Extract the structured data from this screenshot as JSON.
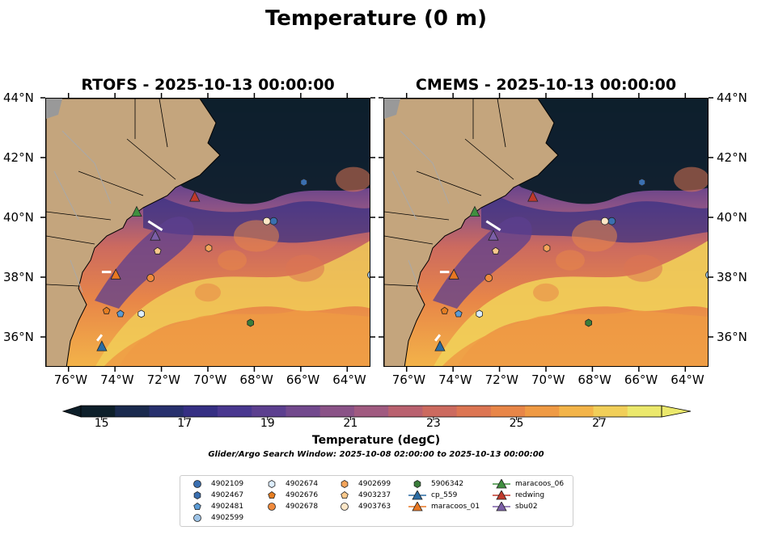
{
  "figure": {
    "title": "Temperature (0 m)",
    "search_window": "Glider/Argo Search Window: 2025-10-08 02:00:00 to 2025-10-13 00:00:00"
  },
  "panels": [
    {
      "title": "RTOFS - 2025-10-13 00:00:00"
    },
    {
      "title": "CMEMS - 2025-10-13 00:00:00"
    }
  ],
  "axes": {
    "lon_ticks": [
      "76°W",
      "74°W",
      "72°W",
      "70°W",
      "68°W",
      "66°W",
      "64°W"
    ],
    "lat_ticks": [
      "44°N",
      "42°N",
      "40°N",
      "38°N",
      "36°N"
    ],
    "lon_range": [
      -77.0,
      -63.0
    ],
    "lat_range": [
      35.0,
      44.0
    ]
  },
  "colorbar": {
    "label": "Temperature (degC)",
    "ticks": [
      "15",
      "17",
      "19",
      "21",
      "23",
      "25",
      "27"
    ],
    "range": [
      14.5,
      28.5
    ],
    "extend": "both",
    "colors": [
      "#0d1f2a",
      "#1a2a4e",
      "#27306d",
      "#352f83",
      "#49378f",
      "#5c3f8f",
      "#72498d",
      "#8a5287",
      "#a05a80",
      "#b9616f",
      "#cc6a5f",
      "#dc7552",
      "#e88648",
      "#ef9a44",
      "#f3b449",
      "#f1cf59",
      "#ebe86c"
    ]
  },
  "markers": {
    "argo": [
      {
        "id": "4902109",
        "lon": -67.2,
        "lat": 39.9,
        "shape": "circle",
        "color": "#3a6fb0"
      },
      {
        "id": "4902467",
        "lon": -65.9,
        "lat": 41.2,
        "shape": "hexagon",
        "color": "#3a6fb0"
      },
      {
        "id": "4902481",
        "lon": -73.8,
        "lat": 36.8,
        "shape": "pentagon",
        "color": "#5b9bd5"
      },
      {
        "id": "4902599",
        "lon": -63.0,
        "lat": 38.1,
        "shape": "circle",
        "color": "#9dc3e6"
      },
      {
        "id": "4902674",
        "lon": -72.9,
        "lat": 36.8,
        "shape": "hexagon",
        "color": "#ddeeff"
      },
      {
        "id": "4902676",
        "lon": -74.4,
        "lat": 36.9,
        "shape": "pentagon",
        "color": "#e67e22"
      },
      {
        "id": "4902678",
        "lon": -72.5,
        "lat": 38.0,
        "shape": "circle",
        "color": "#f08a3c"
      },
      {
        "id": "4902699",
        "lon": -70.0,
        "lat": 39.0,
        "shape": "hexagon",
        "color": "#f5a45a"
      },
      {
        "id": "4903237",
        "lon": -72.2,
        "lat": 38.9,
        "shape": "pentagon",
        "color": "#fbc98c"
      },
      {
        "id": "4903763",
        "lon": -67.5,
        "lat": 39.9,
        "shape": "circle",
        "color": "#fde6c7"
      },
      {
        "id": "5906342",
        "lon": -68.2,
        "lat": 36.5,
        "shape": "hexagon",
        "color": "#3a7d3a"
      }
    ],
    "gliders": [
      {
        "id": "cp_559",
        "lon": -74.6,
        "lat": 35.7,
        "color": "#2b6ca3"
      },
      {
        "id": "maracoos_01",
        "lon": -74.0,
        "lat": 38.1,
        "color": "#e87722"
      },
      {
        "id": "maracoos_06",
        "lon": -73.1,
        "lat": 40.2,
        "color": "#3f8f3f"
      },
      {
        "id": "redwing",
        "lon": -70.6,
        "lat": 40.7,
        "color": "#c0392b"
      },
      {
        "id": "sbu02",
        "lon": -72.3,
        "lat": 39.4,
        "color": "#7b5ea7"
      }
    ]
  },
  "legend": {
    "columns": [
      [
        {
          "label": "4902109",
          "glyph": "circle",
          "color": "#3a6fb0"
        },
        {
          "label": "4902467",
          "glyph": "hexagon",
          "color": "#3a6fb0"
        },
        {
          "label": "4902481",
          "glyph": "pentagon",
          "color": "#5b9bd5"
        },
        {
          "label": "4902599",
          "glyph": "circle",
          "color": "#9dc3e6"
        }
      ],
      [
        {
          "label": "4902674",
          "glyph": "hexagon",
          "color": "#ddeeff"
        },
        {
          "label": "4902676",
          "glyph": "pentagon",
          "color": "#e67e22"
        },
        {
          "label": "4902678",
          "glyph": "circle",
          "color": "#f08a3c"
        }
      ],
      [
        {
          "label": "4902699",
          "glyph": "hexagon",
          "color": "#f5a45a"
        },
        {
          "label": "4903237",
          "glyph": "pentagon",
          "color": "#fbc98c"
        },
        {
          "label": "4903763",
          "glyph": "circle",
          "color": "#fde6c7"
        }
      ],
      [
        {
          "label": "5906342",
          "glyph": "hexagon",
          "color": "#3a7d3a"
        },
        {
          "label": "cp_559",
          "glyph": "triangle-line",
          "color": "#2b6ca3"
        },
        {
          "label": "maracoos_01",
          "glyph": "triangle-line",
          "color": "#e87722"
        }
      ],
      [
        {
          "label": "maracoos_06",
          "glyph": "triangle-line",
          "color": "#3f8f3f"
        },
        {
          "label": "redwing",
          "glyph": "triangle-line",
          "color": "#c0392b"
        },
        {
          "label": "sbu02",
          "glyph": "triangle-line",
          "color": "#7b5ea7"
        }
      ]
    ]
  }
}
